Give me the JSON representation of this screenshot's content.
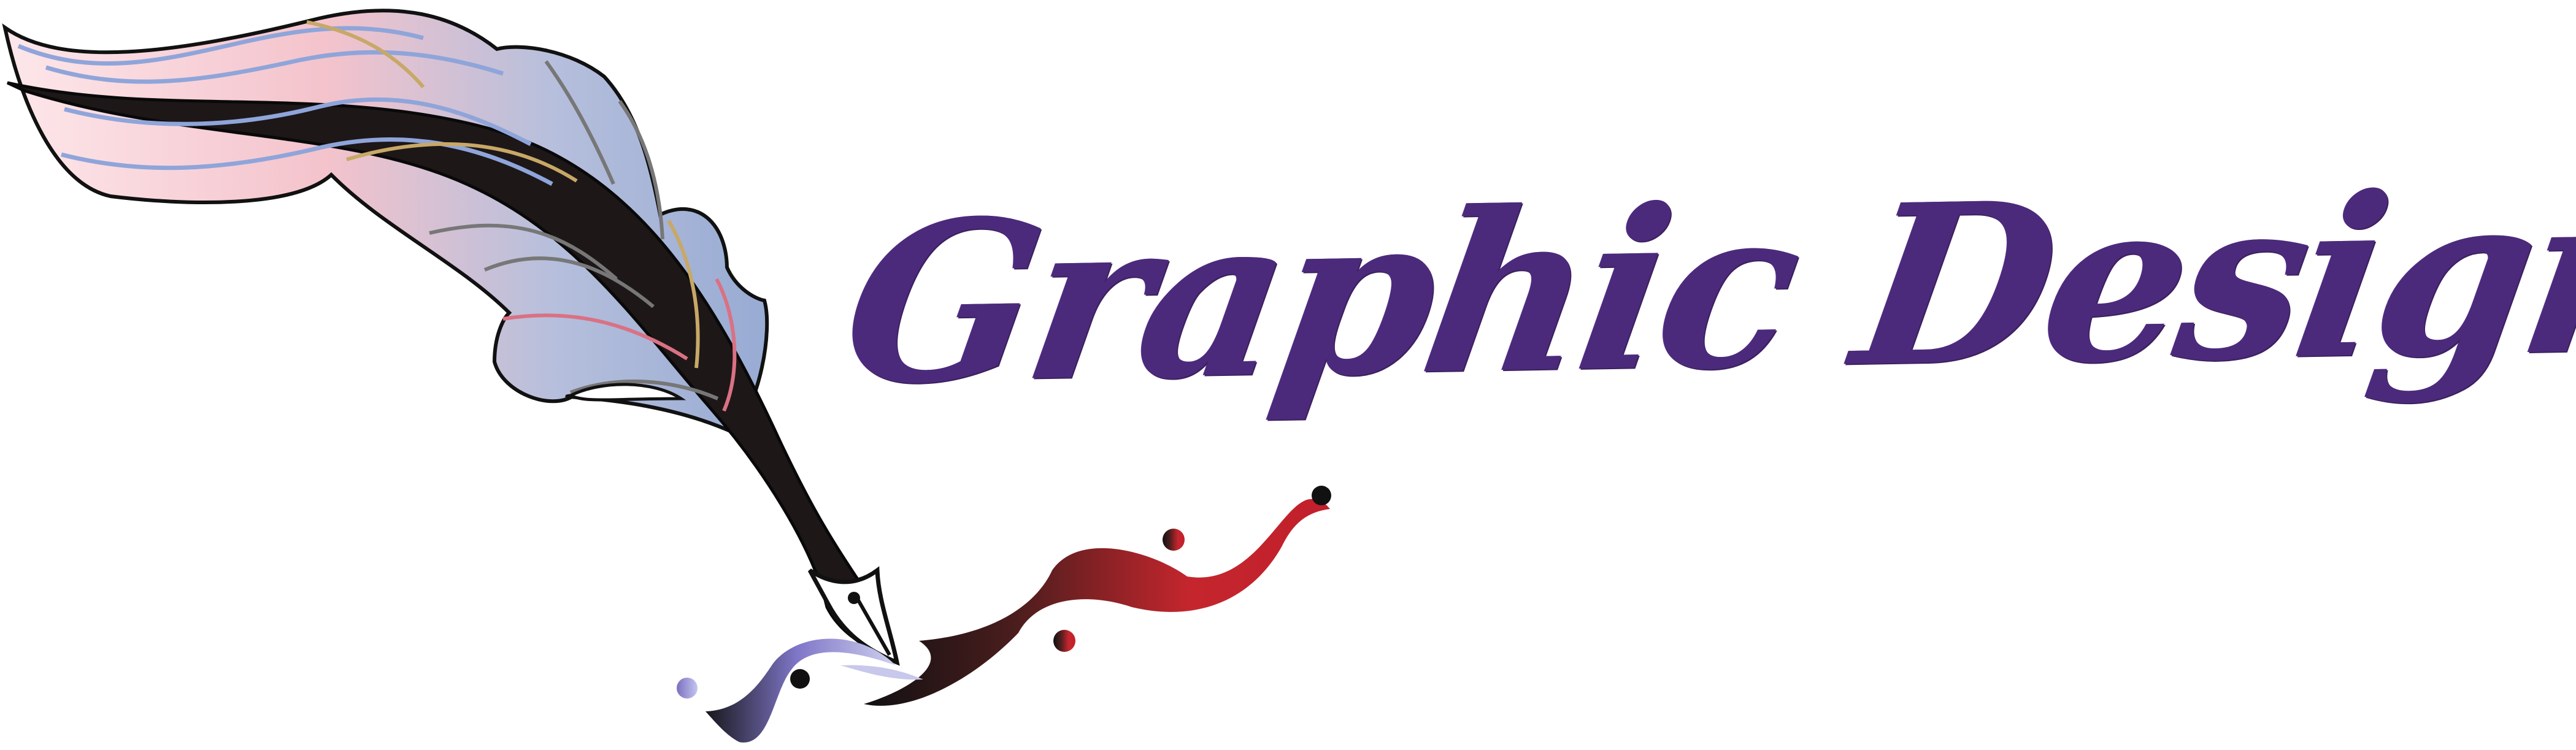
{
  "logo": {
    "title": "Graphic Designing"
  },
  "colors": {
    "title": "#4b2a7b",
    "outline": "#111111",
    "feather_pink": "#f8c7cf",
    "feather_blue": "#9daed4",
    "ink_red": "#c3262f",
    "ink_dark": "#1b1516",
    "ink_violet": "#7f77c8"
  },
  "icons": {
    "feather": "quill-feather-icon",
    "nib": "pen-nib-icon",
    "ink": "ink-splash-icon"
  }
}
